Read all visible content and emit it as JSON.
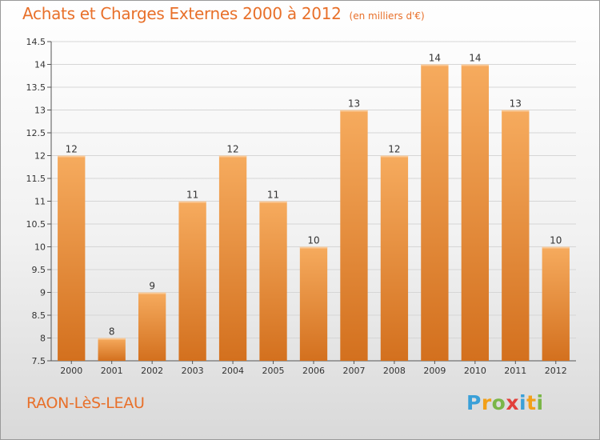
{
  "chart_data": {
    "type": "bar",
    "title": "Achats et Charges Externes 2000 à 2012",
    "subtitle": "(en milliers d'€)",
    "categories": [
      "2000",
      "2001",
      "2002",
      "2003",
      "2004",
      "2005",
      "2006",
      "2007",
      "2008",
      "2009",
      "2010",
      "2011",
      "2012"
    ],
    "values": [
      12,
      8,
      9,
      11,
      12,
      11,
      10,
      13,
      12,
      14,
      14,
      13,
      10
    ],
    "ylim": [
      7.5,
      14.5
    ],
    "yticks": [
      "7.5",
      "8",
      "8.5",
      "9",
      "9.5",
      "10",
      "10.5",
      "11",
      "11.5",
      "12",
      "12.5",
      "13",
      "13.5",
      "14",
      "14.5"
    ],
    "grid": true,
    "bar_color": "#f0913a",
    "bar_color_light": "#f6ab5e",
    "bar_color_dark": "#d3701e"
  },
  "footer": {
    "commune": "RAON-LèS-LEAU",
    "brand": [
      "P",
      "r",
      "o",
      "x",
      "i",
      "t",
      "i"
    ],
    "brand_colors": [
      "#3aa0d8",
      "#f2a019",
      "#7ab648",
      "#e2403a",
      "#3aa0d8",
      "#f2a019",
      "#7ab648"
    ]
  },
  "colors": {
    "accent": "#e8702a"
  }
}
